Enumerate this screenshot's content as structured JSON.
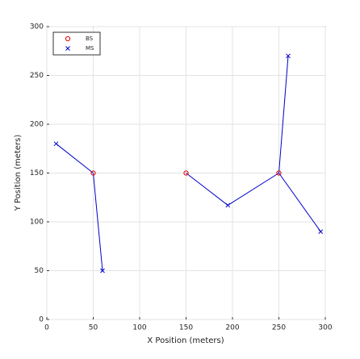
{
  "chart_data": {
    "type": "scatter",
    "xlabel": "X Position (meters)",
    "ylabel": "Y Position (meters)",
    "xlim": [
      0,
      300
    ],
    "ylim": [
      0,
      300
    ],
    "xticks": [
      0,
      50,
      100,
      150,
      200,
      250,
      300
    ],
    "yticks": [
      0,
      50,
      100,
      150,
      200,
      250,
      300
    ],
    "grid": true,
    "legend": "upper left",
    "series": [
      {
        "name": "BS",
        "color": "#e00000",
        "marker": "o",
        "x": [
          50,
          150,
          250
        ],
        "values": [
          150,
          150,
          150
        ]
      },
      {
        "name": "MS",
        "color": "#0000cc",
        "marker": "x",
        "x": [
          10,
          60,
          195,
          260,
          295
        ],
        "values": [
          180,
          50,
          117,
          270,
          90
        ]
      }
    ],
    "connections": {
      "color": "#0000cc",
      "pairs": [
        [
          0,
          0
        ],
        [
          1,
          0
        ],
        [
          2,
          1
        ],
        [
          2,
          2
        ],
        [
          3,
          2
        ],
        [
          4,
          2
        ]
      ]
    }
  }
}
